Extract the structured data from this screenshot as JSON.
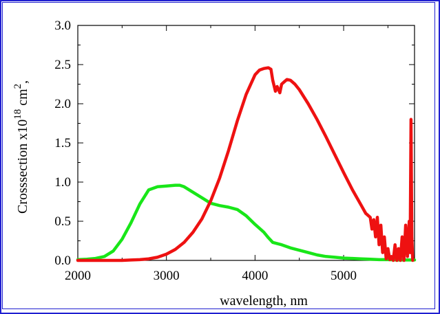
{
  "chart_data": {
    "type": "line",
    "title": "",
    "xlabel": "wavelength, nm",
    "ylabel": "Crosssection x10",
    "ylabel_exp": "18",
    "ylabel_unit": "cm",
    "ylabel_unit_exp": "2",
    "ylabel_suffix": ",",
    "xlim": [
      2000,
      5800
    ],
    "ylim": [
      0.0,
      3.0
    ],
    "xticks": [
      2000,
      3000,
      4000,
      5000
    ],
    "yticks": [
      0.0,
      0.5,
      1.0,
      1.5,
      2.0,
      2.5,
      3.0
    ],
    "xtick_labels": [
      "2000",
      "3000",
      "4000",
      "5000"
    ],
    "ytick_labels": [
      "0.0",
      "0.5",
      "1.0",
      "1.5",
      "2.0",
      "2.5",
      "3.0"
    ],
    "grid": false,
    "legend": null,
    "series": [
      {
        "color": "#19e619",
        "x": [
          2000,
          2100,
          2200,
          2300,
          2400,
          2500,
          2600,
          2700,
          2800,
          2900,
          3000,
          3100,
          3150,
          3200,
          3300,
          3400,
          3500,
          3600,
          3700,
          3800,
          3900,
          4000,
          4100,
          4150,
          4200,
          4300,
          4400,
          4500,
          4600,
          4700,
          4800,
          4900,
          5000,
          5100,
          5200,
          5300,
          5400,
          5500,
          5600,
          5700,
          5800
        ],
        "y": [
          0.01,
          0.015,
          0.025,
          0.05,
          0.12,
          0.27,
          0.48,
          0.72,
          0.9,
          0.94,
          0.95,
          0.96,
          0.96,
          0.94,
          0.87,
          0.8,
          0.73,
          0.7,
          0.68,
          0.65,
          0.57,
          0.46,
          0.36,
          0.29,
          0.23,
          0.2,
          0.16,
          0.13,
          0.1,
          0.07,
          0.05,
          0.04,
          0.03,
          0.025,
          0.02,
          0.015,
          0.01,
          0.01,
          0.005,
          0.005,
          0.005
        ]
      },
      {
        "color": "#ee1111",
        "x": [
          2000,
          2300,
          2500,
          2600,
          2700,
          2800,
          2900,
          3000,
          3100,
          3200,
          3300,
          3400,
          3500,
          3600,
          3700,
          3800,
          3900,
          4000,
          4050,
          4100,
          4150,
          4180,
          4200,
          4230,
          4250,
          4280,
          4300,
          4330,
          4360,
          4400,
          4450,
          4500,
          4600,
          4700,
          4800,
          4900,
          5000,
          5100,
          5200,
          5250,
          5300,
          5320,
          5340,
          5360,
          5380,
          5400,
          5420,
          5440,
          5460,
          5480,
          5500,
          5520,
          5540,
          5560,
          5580,
          5600,
          5620,
          5640,
          5660,
          5680,
          5700,
          5720,
          5740,
          5750,
          5760,
          5770,
          5780
        ],
        "y": [
          0.0,
          0.0,
          0.0,
          0.005,
          0.01,
          0.02,
          0.04,
          0.08,
          0.14,
          0.23,
          0.36,
          0.53,
          0.76,
          1.05,
          1.4,
          1.78,
          2.12,
          2.37,
          2.43,
          2.45,
          2.46,
          2.44,
          2.3,
          2.16,
          2.22,
          2.14,
          2.25,
          2.28,
          2.31,
          2.3,
          2.25,
          2.18,
          2.0,
          1.8,
          1.58,
          1.35,
          1.12,
          0.9,
          0.7,
          0.6,
          0.55,
          0.4,
          0.52,
          0.3,
          0.55,
          0.2,
          0.45,
          0.1,
          0.3,
          0.02,
          0.15,
          0.01,
          0.05,
          0.0,
          0.2,
          0.0,
          0.15,
          0.0,
          0.3,
          0.0,
          0.45,
          0.05,
          0.5,
          0.1,
          1.8,
          0.3,
          0.0
        ]
      }
    ]
  }
}
